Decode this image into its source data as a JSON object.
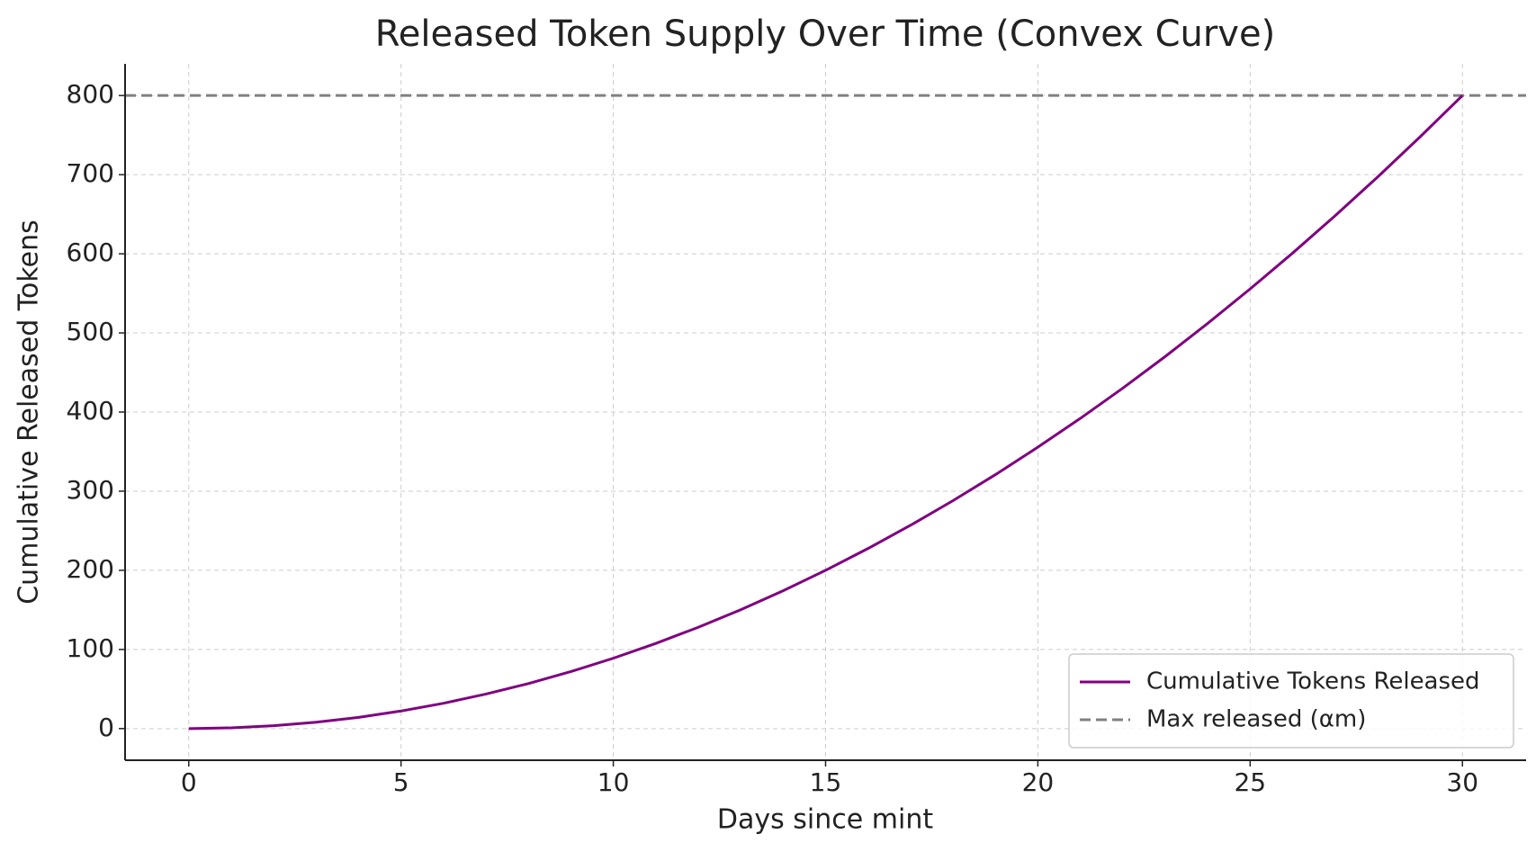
{
  "chart_data": {
    "type": "line",
    "title": "Released Token Supply Over Time (Convex Curve)",
    "x_label": "Days since mint",
    "y_label": "Cumulative Released Tokens",
    "x": [
      0,
      1,
      2,
      3,
      4,
      5,
      6,
      7,
      8,
      9,
      10,
      11,
      12,
      13,
      14,
      15,
      16,
      17,
      18,
      19,
      20,
      21,
      22,
      23,
      24,
      25,
      26,
      27,
      28,
      29,
      30
    ],
    "series": [
      {
        "name": "Cumulative Tokens Released",
        "color": "#800080",
        "values": [
          0,
          0.9,
          3.6,
          8,
          14.2,
          22.2,
          32,
          43.6,
          56.9,
          72,
          88.9,
          107.6,
          128,
          150.2,
          174.2,
          200,
          227.6,
          256.9,
          288,
          320.9,
          355.6,
          392,
          430.2,
          470.2,
          512,
          555.6,
          600.9,
          648,
          696.9,
          747.6,
          800
        ]
      }
    ],
    "reference_line": {
      "name": "Max released (αm)",
      "value": 800,
      "color": "#808080",
      "style": "dashed"
    },
    "xlim": [
      -1.5,
      31.5
    ],
    "xticks": [
      0,
      5,
      10,
      15,
      20,
      25,
      30
    ],
    "ylim": [
      -40,
      840
    ],
    "yticks": [
      0,
      100,
      200,
      300,
      400,
      500,
      600,
      700,
      800
    ],
    "grid": true,
    "legend": "lower right"
  }
}
